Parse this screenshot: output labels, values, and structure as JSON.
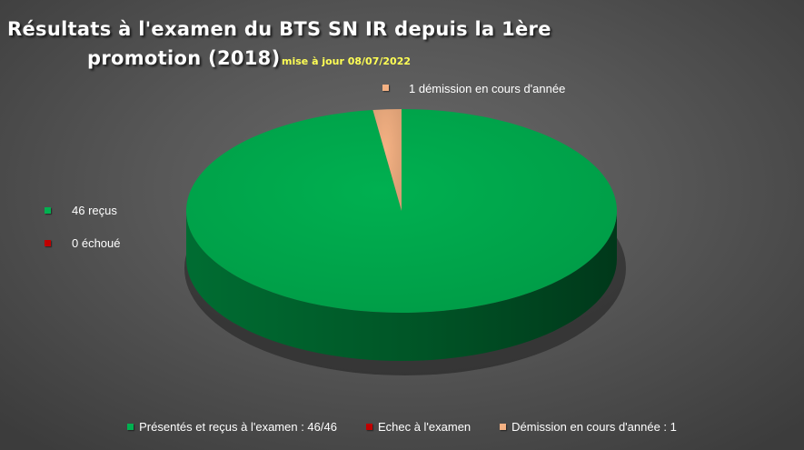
{
  "chart_data": {
    "type": "pie",
    "title_line1": "Résultats à l'examen du BTS SN IR depuis la 1ère",
    "title_line2": "promotion (2018)",
    "subtitle": "mise à jour 08/07/2022",
    "categories": [
      "Présentés et reçus à l'examen : 46/46",
      "Echec à l'examen",
      "Démission en cours d'année : 1"
    ],
    "values": [
      46,
      0,
      1
    ],
    "data_labels": [
      "46 reçus",
      "0 échoué",
      "1 démission en cours d'année"
    ],
    "colors": [
      "#00b050",
      "#c00000",
      "#f4b183"
    ],
    "style": "3d-pie",
    "legend_position": "bottom"
  }
}
